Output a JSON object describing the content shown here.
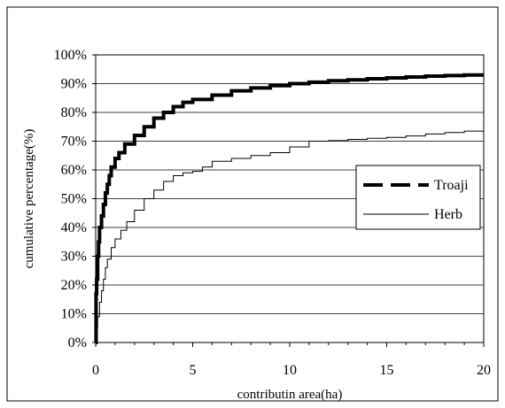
{
  "chart_data": {
    "type": "line",
    "title": "",
    "xlabel": "contributin area(ha)",
    "ylabel": "cumulative percentage(%)",
    "xlim": [
      0,
      20
    ],
    "ylim": [
      0,
      100
    ],
    "x_ticks": [
      "0",
      "5",
      "10",
      "15",
      "20"
    ],
    "y_ticks": [
      "0%",
      "10%",
      "20%",
      "30%",
      "40%",
      "50%",
      "60%",
      "70%",
      "80%",
      "90%",
      "100%"
    ],
    "grid": "horizontal",
    "legend_position": "right-middle",
    "series": [
      {
        "name": "Troaji",
        "style": "dashed-thick",
        "color": "#000000",
        "points": [
          [
            0,
            0
          ],
          [
            0.02,
            17
          ],
          [
            0.05,
            22
          ],
          [
            0.1,
            30
          ],
          [
            0.15,
            35
          ],
          [
            0.2,
            40
          ],
          [
            0.3,
            44
          ],
          [
            0.4,
            48
          ],
          [
            0.5,
            52
          ],
          [
            0.6,
            55
          ],
          [
            0.7,
            58
          ],
          [
            0.8,
            61
          ],
          [
            1.0,
            64
          ],
          [
            1.2,
            66
          ],
          [
            1.5,
            69
          ],
          [
            2.0,
            72
          ],
          [
            2.5,
            75
          ],
          [
            3.0,
            78
          ],
          [
            3.5,
            80
          ],
          [
            4.0,
            82
          ],
          [
            4.5,
            83.5
          ],
          [
            5.0,
            84.5
          ],
          [
            6.0,
            86
          ],
          [
            7.0,
            87.5
          ],
          [
            8.0,
            88.5
          ],
          [
            9.0,
            89.3
          ],
          [
            10.0,
            90
          ],
          [
            11.0,
            90.5
          ],
          [
            12.0,
            91
          ],
          [
            13.0,
            91.3
          ],
          [
            14.0,
            91.7
          ],
          [
            15.0,
            92
          ],
          [
            16.0,
            92.3
          ],
          [
            17.0,
            92.6
          ],
          [
            18.0,
            92.8
          ],
          [
            19.0,
            93
          ],
          [
            20.0,
            93
          ]
        ]
      },
      {
        "name": "Herb",
        "style": "solid-thin",
        "color": "#000000",
        "points": [
          [
            0,
            0
          ],
          [
            0.05,
            5
          ],
          [
            0.1,
            9
          ],
          [
            0.2,
            14
          ],
          [
            0.3,
            18
          ],
          [
            0.4,
            22
          ],
          [
            0.5,
            26
          ],
          [
            0.6,
            29
          ],
          [
            0.8,
            33
          ],
          [
            1.0,
            36
          ],
          [
            1.3,
            39
          ],
          [
            1.6,
            42
          ],
          [
            2.0,
            46
          ],
          [
            2.5,
            50
          ],
          [
            3.0,
            53
          ],
          [
            3.5,
            56
          ],
          [
            4.0,
            58
          ],
          [
            4.5,
            59
          ],
          [
            5.0,
            59.5
          ],
          [
            5.5,
            61
          ],
          [
            6.0,
            63
          ],
          [
            7.0,
            64
          ],
          [
            8.0,
            65
          ],
          [
            9.0,
            66
          ],
          [
            10.0,
            68
          ],
          [
            11.0,
            70
          ],
          [
            12.0,
            70.2
          ],
          [
            13.0,
            70.6
          ],
          [
            14.0,
            71
          ],
          [
            15.0,
            71.3
          ],
          [
            16.0,
            71.8
          ],
          [
            17.0,
            72.5
          ],
          [
            18.0,
            73
          ],
          [
            19.0,
            73.5
          ],
          [
            20.0,
            75
          ]
        ]
      }
    ]
  }
}
